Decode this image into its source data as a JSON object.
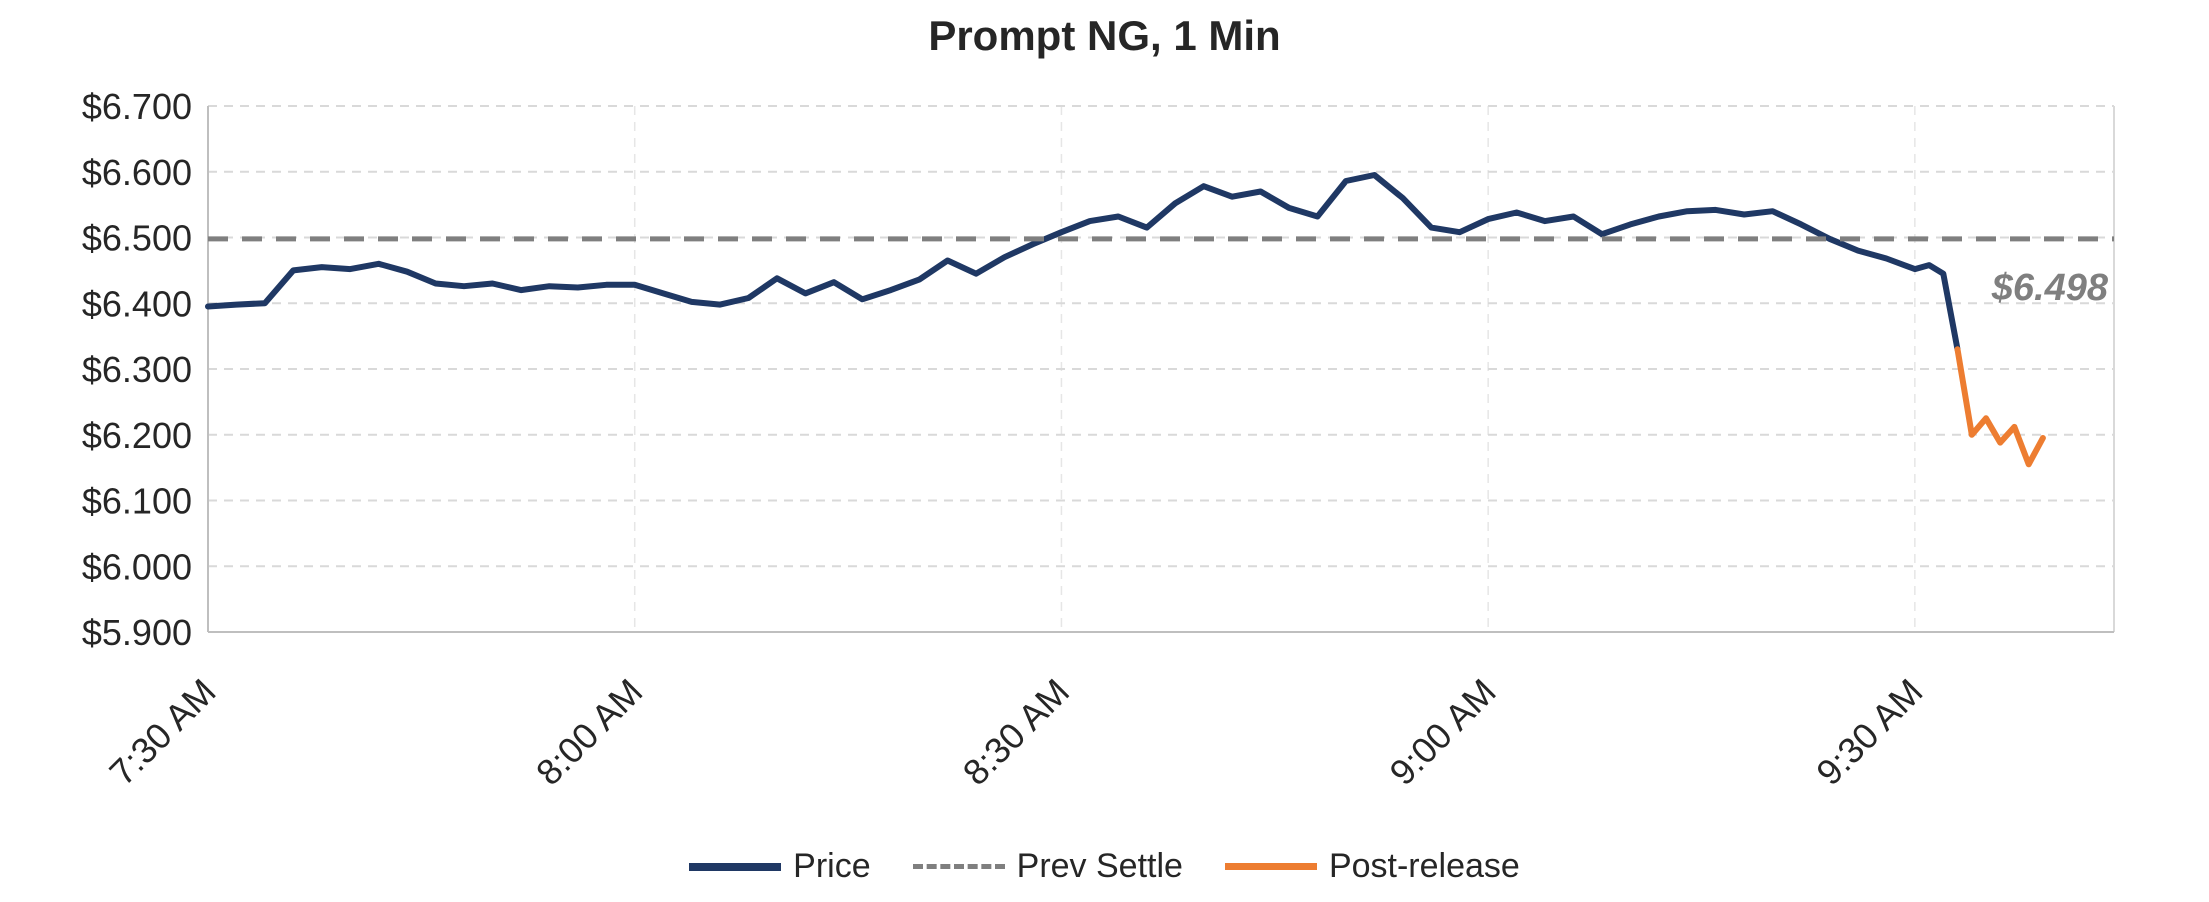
{
  "chart_data": {
    "type": "line",
    "title": "Prompt NG, 1 Min",
    "legend_position": "bottom",
    "grid": true,
    "x_axis": {
      "min": "7:30",
      "max": "9:44",
      "ticks": [
        {
          "label": "7:30 AM",
          "t": "7:30"
        },
        {
          "label": "8:00 AM",
          "t": "8:00"
        },
        {
          "label": "8:30 AM",
          "t": "8:30"
        },
        {
          "label": "9:00 AM",
          "t": "9:00"
        },
        {
          "label": "9:30 AM",
          "t": "9:30"
        }
      ]
    },
    "y_axis": {
      "min": 5.9,
      "max": 6.7,
      "step": 0.1,
      "ticks": [
        {
          "label": "$5.900",
          "v": 5.9
        },
        {
          "label": "$6.000",
          "v": 6.0
        },
        {
          "label": "$6.100",
          "v": 6.1
        },
        {
          "label": "$6.200",
          "v": 6.2
        },
        {
          "label": "$6.300",
          "v": 6.3
        },
        {
          "label": "$6.400",
          "v": 6.4
        },
        {
          "label": "$6.500",
          "v": 6.5
        },
        {
          "label": "$6.600",
          "v": 6.6
        },
        {
          "label": "$6.700",
          "v": 6.7
        }
      ]
    },
    "annotation": {
      "text": "$6.498"
    },
    "colors": {
      "price": "#1F3864",
      "prev_settle": "#7F7F7F",
      "post_release": "#ED7D31",
      "grid": "#D9D9D9",
      "axis": "#BFBFBF",
      "annotation": "#7F7F7F",
      "text": "#262626"
    },
    "series": [
      {
        "name": "Price",
        "type": "line",
        "style": "solid",
        "color_key": "price",
        "points": [
          [
            "7:30",
            6.395
          ],
          [
            "7:32",
            6.398
          ],
          [
            "7:34",
            6.4
          ],
          [
            "7:36",
            6.45
          ],
          [
            "7:38",
            6.455
          ],
          [
            "7:40",
            6.452
          ],
          [
            "7:42",
            6.46
          ],
          [
            "7:44",
            6.448
          ],
          [
            "7:46",
            6.43
          ],
          [
            "7:48",
            6.426
          ],
          [
            "7:50",
            6.43
          ],
          [
            "7:52",
            6.42
          ],
          [
            "7:54",
            6.426
          ],
          [
            "7:56",
            6.424
          ],
          [
            "7:58",
            6.428
          ],
          [
            "8:00",
            6.428
          ],
          [
            "8:02",
            6.415
          ],
          [
            "8:04",
            6.402
          ],
          [
            "8:06",
            6.398
          ],
          [
            "8:08",
            6.408
          ],
          [
            "8:10",
            6.438
          ],
          [
            "8:12",
            6.415
          ],
          [
            "8:14",
            6.432
          ],
          [
            "8:16",
            6.406
          ],
          [
            "8:18",
            6.42
          ],
          [
            "8:20",
            6.436
          ],
          [
            "8:22",
            6.465
          ],
          [
            "8:24",
            6.445
          ],
          [
            "8:26",
            6.47
          ],
          [
            "8:28",
            6.49
          ],
          [
            "8:30",
            6.508
          ],
          [
            "8:32",
            6.525
          ],
          [
            "8:34",
            6.532
          ],
          [
            "8:36",
            6.515
          ],
          [
            "8:38",
            6.552
          ],
          [
            "8:40",
            6.578
          ],
          [
            "8:42",
            6.562
          ],
          [
            "8:44",
            6.57
          ],
          [
            "8:46",
            6.545
          ],
          [
            "8:48",
            6.532
          ],
          [
            "8:50",
            6.586
          ],
          [
            "8:52",
            6.595
          ],
          [
            "8:54",
            6.56
          ],
          [
            "8:56",
            6.515
          ],
          [
            "8:58",
            6.508
          ],
          [
            "9:00",
            6.528
          ],
          [
            "9:02",
            6.538
          ],
          [
            "9:04",
            6.525
          ],
          [
            "9:06",
            6.532
          ],
          [
            "9:08",
            6.505
          ],
          [
            "9:10",
            6.52
          ],
          [
            "9:12",
            6.532
          ],
          [
            "9:14",
            6.54
          ],
          [
            "9:16",
            6.542
          ],
          [
            "9:18",
            6.535
          ],
          [
            "9:20",
            6.54
          ],
          [
            "9:22",
            6.52
          ],
          [
            "9:24",
            6.498
          ],
          [
            "9:26",
            6.48
          ],
          [
            "9:28",
            6.468
          ],
          [
            "9:30",
            6.452
          ],
          [
            "9:31",
            6.458
          ],
          [
            "9:32",
            6.445
          ],
          [
            "9:33",
            6.33
          ]
        ]
      },
      {
        "name": "Prev Settle",
        "type": "hline",
        "style": "dashed",
        "color_key": "prev_settle",
        "value": 6.498
      },
      {
        "name": "Post-release",
        "type": "line",
        "style": "solid",
        "color_key": "post_release",
        "points": [
          [
            "9:33",
            6.33
          ],
          [
            "9:34",
            6.2
          ],
          [
            "9:35",
            6.225
          ],
          [
            "9:36",
            6.188
          ],
          [
            "9:37",
            6.212
          ],
          [
            "9:38",
            6.155
          ],
          [
            "9:39",
            6.195
          ]
        ]
      }
    ]
  }
}
